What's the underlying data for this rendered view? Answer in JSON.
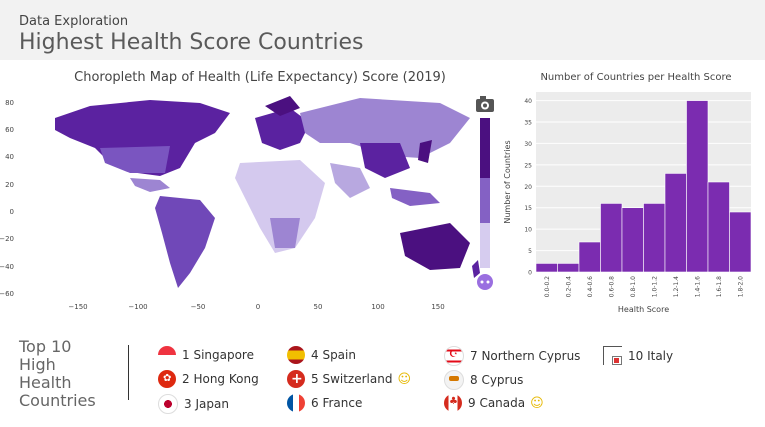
{
  "header": {
    "subtitle": "Data Exploration",
    "title": "Highest Health Score Countries"
  },
  "map": {
    "title": "Choropleth Map of Health (Life Expectancy) Score (2019)",
    "y_ticks": [
      "80",
      "60",
      "40",
      "20",
      "0",
      "−20",
      "−40",
      "−60"
    ],
    "x_ticks": [
      "−150",
      "−100",
      "−50",
      "0",
      "50",
      "100",
      "150"
    ],
    "camera_icon": "camera-icon",
    "plotly_icon": "plotly-logo-icon",
    "colors": {
      "high": "#4b1080",
      "mid": "#8461c4",
      "low": "#efeaf7"
    }
  },
  "chart_data": {
    "type": "bar",
    "title": "Number of Countries per Health Score",
    "xlabel": "Health Score",
    "ylabel": "Number of Countries",
    "categories": [
      "0.0-0.2",
      "0.2-0.4",
      "0.4-0.6",
      "0.6-0.8",
      "0.8-1.0",
      "1.0-1.2",
      "1.2-1.4",
      "1.4-1.6",
      "1.6-1.8",
      "1.8-2.0"
    ],
    "values": [
      2,
      2,
      7,
      16,
      15,
      16,
      23,
      40,
      21,
      14
    ],
    "y_ticks": [
      0,
      5,
      10,
      15,
      20,
      25,
      30,
      35,
      40
    ],
    "ylim": [
      0,
      42
    ],
    "color": "#7b2cb0"
  },
  "top10": {
    "label_line1": "Top 10",
    "label_line2": "High",
    "label_line3": "Health",
    "label_line4": "Countries",
    "items": [
      {
        "label": "1 Singapore",
        "flag": "singapore"
      },
      {
        "label": "2 Hong Kong",
        "flag": "hong-kong"
      },
      {
        "label": "3 Japan",
        "flag": "japan"
      },
      {
        "label": "4 Spain",
        "flag": "spain"
      },
      {
        "label": "5 Switzerland",
        "flag": "switzerland",
        "smiley": "☺"
      },
      {
        "label": "6 France",
        "flag": "france"
      },
      {
        "label": "7 Northern Cyprus",
        "flag": "northern-cyprus"
      },
      {
        "label": "8 Cyprus",
        "flag": "cyprus"
      },
      {
        "label": "9 Canada",
        "flag": "canada",
        "smiley": "☺"
      },
      {
        "label": "10 Italy",
        "flag": "italy"
      }
    ]
  }
}
